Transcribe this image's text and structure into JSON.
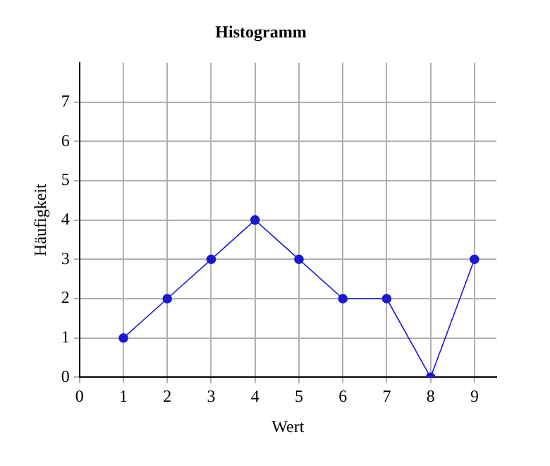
{
  "chart_data": {
    "type": "line",
    "title": "Histogramm",
    "xlabel": "Wert",
    "ylabel": "Häufigkeit",
    "x": [
      1,
      2,
      3,
      4,
      5,
      6,
      7,
      8,
      9
    ],
    "series": [
      {
        "color": "#1a1acc",
        "values": [
          1,
          2,
          3,
          4,
          3,
          2,
          2,
          0,
          3
        ]
      }
    ],
    "xlim": [
      0,
      9.5
    ],
    "ylim": [
      0,
      8
    ],
    "xticks": [
      0,
      1,
      2,
      3,
      4,
      5,
      6,
      7,
      8,
      9
    ],
    "yticks": [
      0,
      1,
      2,
      3,
      4,
      5,
      6,
      7
    ],
    "grid": true,
    "marker": "circle",
    "line_style": "solid",
    "legend": false
  }
}
